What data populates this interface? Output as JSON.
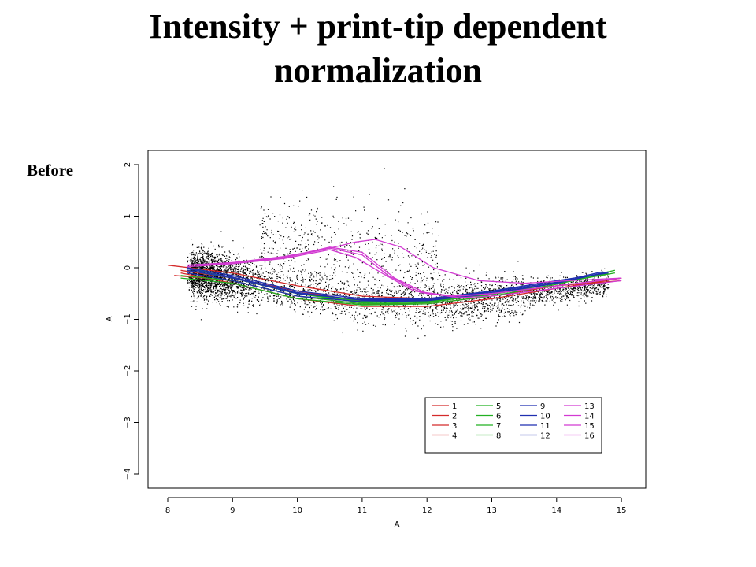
{
  "slide": {
    "title_line1": "Intensity + print-tip dependent",
    "title_line2": "normalization",
    "side_label": "Before"
  },
  "chart_data": {
    "type": "scatter",
    "xlabel": "A",
    "ylabel": "A",
    "xlim": [
      7.8,
      15.4
    ],
    "ylim": [
      -4.2,
      2.2
    ],
    "x_ticks": [
      8,
      9,
      10,
      11,
      12,
      13,
      14,
      15
    ],
    "y_ticks": [
      -4,
      -3,
      -2,
      -1,
      0,
      1,
      2
    ],
    "grid": false,
    "legend_position": "bottom-right",
    "colors": {
      "red": "#d42a2a",
      "green": "#22b022",
      "blue": "#1f2fb0",
      "magenta": "#d23ad2",
      "points": "#000000"
    },
    "series": [
      {
        "name": "1",
        "color": "red",
        "x": [
          8,
          9,
          10,
          11,
          12,
          13,
          14,
          15
        ],
        "y": [
          0.05,
          -0.1,
          -0.35,
          -0.55,
          -0.6,
          -0.5,
          -0.35,
          -0.2
        ]
      },
      {
        "name": "2",
        "color": "red",
        "x": [
          8.1,
          9,
          10,
          11,
          12,
          13,
          14,
          15
        ],
        "y": [
          -0.15,
          -0.25,
          -0.55,
          -0.7,
          -0.7,
          -0.55,
          -0.35,
          -0.2
        ]
      },
      {
        "name": "3",
        "color": "red",
        "x": [
          8.2,
          9,
          10,
          11,
          12,
          13,
          14,
          15
        ],
        "y": [
          -0.05,
          -0.2,
          -0.45,
          -0.65,
          -0.65,
          -0.5,
          -0.35,
          -0.25
        ]
      },
      {
        "name": "4",
        "color": "red",
        "x": [
          8.2,
          9,
          10,
          11,
          12,
          13,
          14,
          15
        ],
        "y": [
          -0.1,
          -0.3,
          -0.6,
          -0.75,
          -0.75,
          -0.6,
          -0.4,
          -0.2
        ]
      },
      {
        "name": "5",
        "color": "green",
        "x": [
          8.2,
          9,
          10,
          11,
          12,
          13,
          14,
          14.9
        ],
        "y": [
          -0.15,
          -0.25,
          -0.55,
          -0.7,
          -0.68,
          -0.5,
          -0.3,
          -0.05
        ]
      },
      {
        "name": "6",
        "color": "green",
        "x": [
          8.3,
          9,
          10,
          11,
          12,
          13,
          14,
          14.9
        ],
        "y": [
          0.0,
          -0.2,
          -0.5,
          -0.65,
          -0.65,
          -0.5,
          -0.3,
          -0.1
        ]
      },
      {
        "name": "7",
        "color": "green",
        "x": [
          8.2,
          9,
          10,
          11,
          12,
          13,
          14,
          14.8
        ],
        "y": [
          -0.2,
          -0.3,
          -0.6,
          -0.72,
          -0.7,
          -0.55,
          -0.32,
          -0.1
        ]
      },
      {
        "name": "8",
        "color": "green",
        "x": [
          8.3,
          9,
          10,
          11,
          12,
          13,
          14,
          14.8
        ],
        "y": [
          -0.05,
          -0.2,
          -0.5,
          -0.68,
          -0.66,
          -0.52,
          -0.3,
          -0.12
        ]
      },
      {
        "name": "9",
        "color": "blue",
        "x": [
          8.3,
          9,
          10,
          11,
          12,
          13,
          14,
          14.8
        ],
        "y": [
          -0.05,
          -0.2,
          -0.5,
          -0.62,
          -0.62,
          -0.48,
          -0.3,
          -0.08
        ]
      },
      {
        "name": "10",
        "color": "blue",
        "x": [
          8.3,
          9,
          10,
          11,
          12,
          13,
          14,
          14.8
        ],
        "y": [
          0.0,
          -0.15,
          -0.45,
          -0.6,
          -0.6,
          -0.45,
          -0.25,
          -0.1
        ]
      },
      {
        "name": "11",
        "color": "blue",
        "x": [
          8.3,
          9,
          10,
          11,
          12,
          13,
          14,
          14.7
        ],
        "y": [
          -0.1,
          -0.25,
          -0.55,
          -0.66,
          -0.64,
          -0.5,
          -0.3,
          -0.1
        ]
      },
      {
        "name": "12",
        "color": "blue",
        "x": [
          8.3,
          9,
          10,
          11,
          12,
          13,
          14,
          14.7
        ],
        "y": [
          -0.02,
          -0.18,
          -0.48,
          -0.63,
          -0.63,
          -0.46,
          -0.28,
          -0.08
        ]
      },
      {
        "name": "13",
        "color": "magenta",
        "x": [
          8.3,
          9,
          9.8,
          10.4,
          10.9,
          11.2,
          11.6,
          12.1,
          12.8,
          13.5,
          14.2,
          15
        ],
        "y": [
          0.05,
          0.08,
          0.2,
          0.35,
          0.5,
          0.55,
          0.4,
          0.0,
          -0.25,
          -0.3,
          -0.25,
          -0.2
        ]
      },
      {
        "name": "14",
        "color": "magenta",
        "x": [
          8.3,
          9,
          9.8,
          10.5,
          11,
          11.5,
          12,
          12.5,
          13,
          14,
          15
        ],
        "y": [
          0.05,
          0.1,
          0.2,
          0.4,
          0.3,
          -0.2,
          -0.5,
          -0.55,
          -0.5,
          -0.35,
          -0.2
        ]
      },
      {
        "name": "15",
        "color": "magenta",
        "x": [
          8.3,
          9,
          9.8,
          10.5,
          10.9,
          11.3,
          11.8,
          12.4,
          13,
          14,
          15
        ],
        "y": [
          0.02,
          0.08,
          0.18,
          0.35,
          0.2,
          -0.1,
          -0.45,
          -0.55,
          -0.5,
          -0.35,
          -0.2
        ]
      },
      {
        "name": "16",
        "color": "magenta",
        "x": [
          8.3,
          9,
          9.8,
          10.5,
          11,
          11.4,
          11.9,
          12.5,
          13,
          14,
          15
        ],
        "y": [
          0.05,
          0.1,
          0.22,
          0.38,
          0.25,
          -0.15,
          -0.48,
          -0.58,
          -0.55,
          -0.4,
          -0.25
        ]
      }
    ]
  }
}
